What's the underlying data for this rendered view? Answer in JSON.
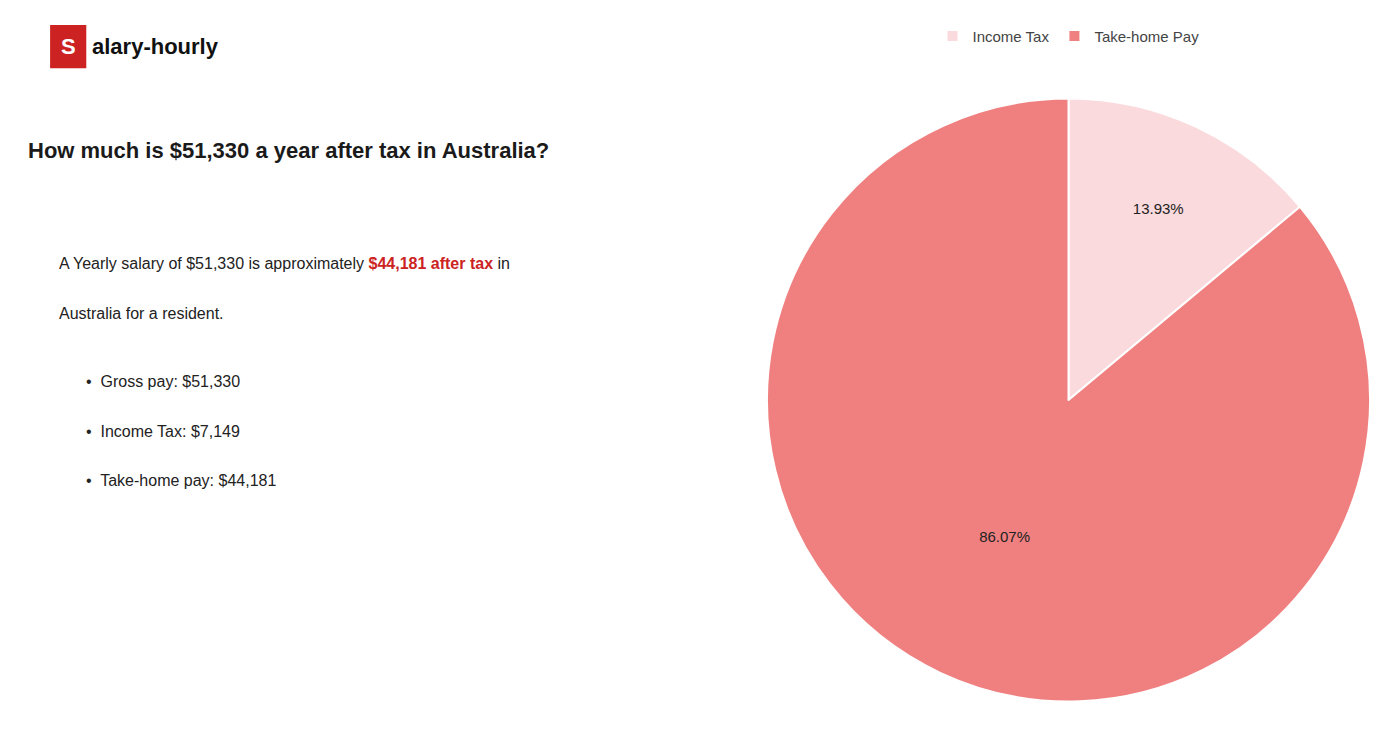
{
  "chart_data": {
    "type": "pie",
    "title": "How much is $51,330 a year after tax in Australia?",
    "categories": [
      "Income Tax",
      "Take-home Pay"
    ],
    "values": [
      13.93,
      86.07
    ],
    "value_labels": [
      "13.93%",
      "86.07%"
    ],
    "colors": [
      "#fadadd",
      "#f08080"
    ],
    "data_labels": true,
    "legend": "top",
    "annotations": [
      {
        "text": "S",
        "color": "#cc2222"
      },
      {
        "text": "alary-hourly"
      },
      {
        "text": "A Yearly salary of $51,330 is approximately "
      },
      {
        "text": "$44,181 after tax",
        "color": "#cc2222"
      },
      {
        "text": " in"
      },
      {
        "text": "Australia for a resident."
      },
      {
        "text": "•  Gross pay: $51,330"
      },
      {
        "text": "•  Income Tax: $7,149"
      },
      {
        "text": "•  Take-home pay: $44,181"
      }
    ]
  }
}
